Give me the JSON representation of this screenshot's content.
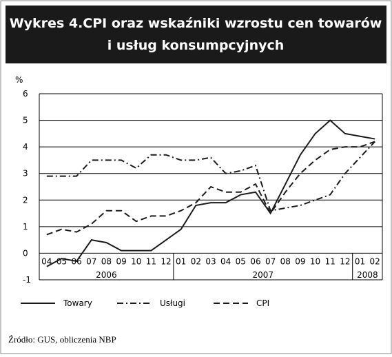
{
  "chart_data": {
    "type": "line",
    "title_lines": [
      "Wykres 4.CPI oraz wskaźniki wzrostu cen towarów",
      "i usług konsumpcyjnych"
    ],
    "y_label": "%",
    "categories": [
      "04",
      "05",
      "06",
      "07",
      "08",
      "09",
      "10",
      "11",
      "12",
      "01",
      "02",
      "03",
      "04",
      "05",
      "06",
      "07",
      "08",
      "09",
      "10",
      "11",
      "12",
      "01",
      "02"
    ],
    "years": [
      "2006",
      "2007",
      "2008"
    ],
    "ylim": [
      -1,
      6
    ],
    "yticks": [
      -1,
      0,
      1,
      2,
      3,
      4,
      5,
      6
    ],
    "grid": true,
    "series": [
      {
        "name": "Towary",
        "color": "#1a1a1a",
        "dash": "solid",
        "values": [
          -0.5,
          -0.2,
          -0.3,
          0.5,
          0.4,
          0.1,
          0.1,
          0.1,
          0.5,
          0.9,
          1.8,
          1.9,
          1.9,
          2.2,
          2.3,
          1.5,
          2.6,
          3.7,
          4.5,
          5.0,
          4.5,
          4.4,
          4.3
        ]
      },
      {
        "name": "Usługi",
        "color": "#1a1a1a",
        "dash": "dashdot",
        "values": [
          2.9,
          2.9,
          2.9,
          3.5,
          3.5,
          3.5,
          3.2,
          3.7,
          3.7,
          3.5,
          3.5,
          3.6,
          3.0,
          3.1,
          3.3,
          1.6,
          1.7,
          1.8,
          2.0,
          2.2,
          3.0,
          3.6,
          4.2
        ]
      },
      {
        "name": "CPI",
        "color": "#1a1a1a",
        "dash": "dashed",
        "values": [
          0.7,
          0.9,
          0.8,
          1.1,
          1.6,
          1.6,
          1.2,
          1.4,
          1.4,
          1.6,
          1.9,
          2.5,
          2.3,
          2.3,
          2.6,
          1.5,
          2.3,
          3.0,
          3.5,
          3.9,
          4.0,
          4.0,
          4.2
        ]
      }
    ],
    "source": "Źródło: GUS, obliczenia NBP"
  }
}
